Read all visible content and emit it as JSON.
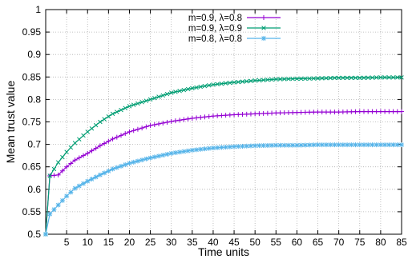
{
  "chart_data": {
    "type": "line",
    "xlabel": "Time units",
    "ylabel": "Mean trust value",
    "xlim": [
      0,
      85
    ],
    "ylim": [
      0.5,
      1.0
    ],
    "x_ticks": [
      5,
      10,
      15,
      20,
      25,
      30,
      35,
      40,
      45,
      50,
      55,
      60,
      65,
      70,
      75,
      80,
      85
    ],
    "y_ticks": [
      "0.5",
      "0.55",
      "0.6",
      "0.65",
      "0.7",
      "0.75",
      "0.8",
      "0.85",
      "0.9",
      "0.95",
      "1"
    ],
    "grid": true,
    "legend_position": "top-center",
    "series": [
      {
        "name": "m=0.9, λ=0.8",
        "color": "#9400d3",
        "marker": "plus",
        "x": [
          0,
          1,
          3,
          5,
          7,
          10,
          13,
          16,
          20,
          25,
          30,
          35,
          40,
          45,
          50,
          55,
          60,
          65,
          70,
          75,
          80,
          85
        ],
        "values": [
          0.5,
          0.63,
          0.632,
          0.65,
          0.665,
          0.68,
          0.697,
          0.712,
          0.728,
          0.742,
          0.751,
          0.758,
          0.763,
          0.766,
          0.768,
          0.77,
          0.771,
          0.772,
          0.772,
          0.773,
          0.773,
          0.773
        ]
      },
      {
        "name": "m=0.9, λ=0.9",
        "color": "#009e73",
        "marker": "cross",
        "x": [
          0,
          1,
          3,
          5,
          7,
          10,
          13,
          16,
          20,
          25,
          30,
          35,
          40,
          45,
          50,
          55,
          60,
          65,
          70,
          75,
          80,
          85
        ],
        "values": [
          0.5,
          0.63,
          0.66,
          0.683,
          0.703,
          0.728,
          0.75,
          0.768,
          0.785,
          0.8,
          0.815,
          0.825,
          0.833,
          0.838,
          0.842,
          0.845,
          0.846,
          0.847,
          0.848,
          0.848,
          0.849,
          0.849
        ]
      },
      {
        "name": "m=0.8, λ=0.8",
        "color": "#56b4e9",
        "marker": "star",
        "x": [
          0,
          1,
          3,
          5,
          7,
          10,
          13,
          16,
          20,
          25,
          30,
          35,
          40,
          45,
          50,
          55,
          60,
          65,
          70,
          75,
          80,
          85
        ],
        "values": [
          0.5,
          0.545,
          0.565,
          0.585,
          0.602,
          0.618,
          0.632,
          0.645,
          0.658,
          0.67,
          0.68,
          0.687,
          0.692,
          0.695,
          0.697,
          0.698,
          0.698,
          0.699,
          0.699,
          0.699,
          0.699,
          0.699
        ]
      }
    ]
  }
}
